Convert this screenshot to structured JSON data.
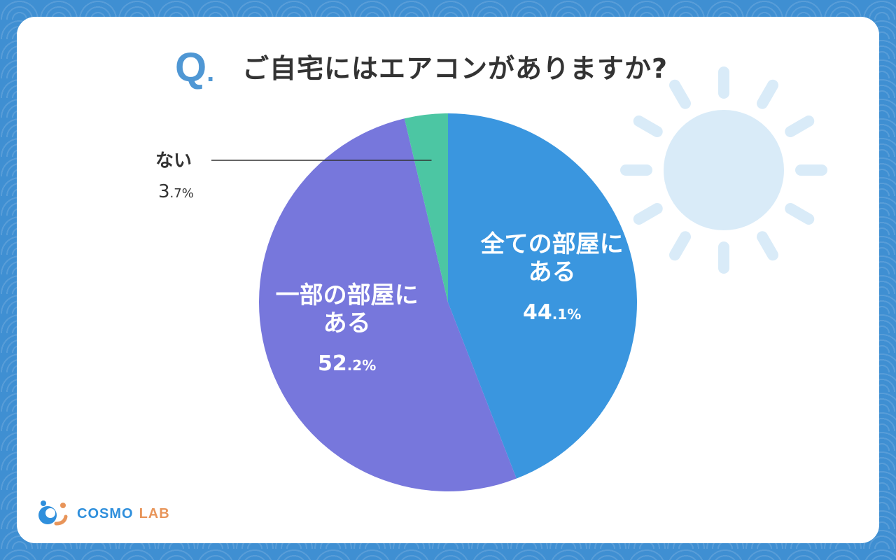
{
  "question": {
    "mark": "Q",
    "mark_dot": ".",
    "text": "ご自宅にはエアコンがありますか?"
  },
  "chart_data": {
    "type": "pie",
    "title": "ご自宅にはエアコンがありますか?",
    "slices": [
      {
        "label_lines": [
          "全ての部屋に",
          "ある"
        ],
        "value": 44.1,
        "value_int": "44",
        "value_frac": ".1%",
        "color": "#3a96df",
        "label_position": "inside"
      },
      {
        "label_lines": [
          "一部の部屋に",
          "ある"
        ],
        "value": 52.2,
        "value_int": "52",
        "value_frac": ".2%",
        "color": "#7777dc",
        "label_position": "inside"
      },
      {
        "label_lines": [
          "ない"
        ],
        "value": 3.7,
        "value_int": "3",
        "value_frac": ".7%",
        "color": "#4cc6a3",
        "label_position": "outside-left"
      }
    ],
    "start": "12 o'clock",
    "direction": "clockwise"
  },
  "logo": {
    "text_main": "COSMO",
    "text_sub": "LAB",
    "colors": {
      "blue": "#2f8fdc",
      "orange": "#e8955a"
    }
  },
  "decoration": {
    "sun_icon": "sun-icon",
    "sun_color": "#d9ebf8"
  },
  "colors": {
    "background": "#3f8fd2",
    "card": "#ffffff",
    "q_mark": "#4f97d4",
    "text": "#333333"
  }
}
